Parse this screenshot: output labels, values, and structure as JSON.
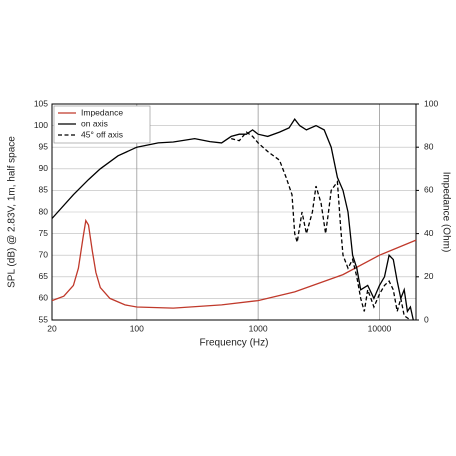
{
  "chart_data": {
    "type": "line",
    "x_label": "Frequency (Hz)",
    "y_label": "SPL (dB) @ 2.83V, 1m, half space",
    "y2_label": "Impedance (Ohm)",
    "xlim": [
      20,
      20000
    ],
    "xticks": [
      20,
      100,
      1000,
      10000
    ],
    "xscale": "log",
    "ylim": [
      55,
      105
    ],
    "yticks": [
      55,
      60,
      65,
      70,
      75,
      80,
      85,
      90,
      95,
      100,
      105
    ],
    "y2lim": [
      0,
      100
    ],
    "y2ticks": [
      0,
      20,
      40,
      60,
      80,
      100
    ],
    "grid": true,
    "legend": "upper left",
    "series": [
      {
        "name": "Impedance",
        "color": "#c0392b",
        "axis": "y2",
        "style": "solid",
        "x": [
          20,
          25,
          30,
          33,
          36,
          38,
          40,
          43,
          46,
          50,
          60,
          80,
          100,
          200,
          500,
          1000,
          2000,
          5000,
          10000,
          20000
        ],
        "values": [
          9,
          11,
          16,
          24,
          38,
          46,
          44,
          32,
          22,
          15,
          10,
          7,
          6,
          5.5,
          7,
          9,
          13,
          21,
          30,
          37
        ]
      },
      {
        "name": "on axis",
        "color": "#000000",
        "axis": "y",
        "style": "solid",
        "x": [
          20,
          30,
          40,
          50,
          70,
          100,
          150,
          200,
          300,
          400,
          500,
          600,
          700,
          800,
          900,
          1000,
          1200,
          1500,
          1800,
          2000,
          2200,
          2500,
          3000,
          3500,
          4000,
          4500,
          5000,
          5500,
          6000,
          6500,
          7000,
          8000,
          9000,
          10000,
          11000,
          12000,
          13000,
          14000,
          15000,
          16000,
          17000,
          18000,
          19000
        ],
        "values": [
          78.5,
          84,
          87.5,
          90,
          93,
          95,
          96,
          96.2,
          97,
          96.3,
          96,
          97.5,
          98,
          98,
          99,
          98,
          97.5,
          98.5,
          99.5,
          101.5,
          100,
          99,
          100,
          99,
          95,
          88,
          85,
          80,
          70,
          67,
          62,
          63,
          60,
          63,
          65,
          70,
          69,
          64,
          60,
          62,
          57,
          58,
          55
        ]
      },
      {
        "name": "45° off axis",
        "color": "#000000",
        "axis": "y",
        "style": "dashed",
        "x": [
          600,
          700,
          800,
          900,
          1000,
          1200,
          1500,
          1700,
          1900,
          2000,
          2100,
          2300,
          2500,
          2800,
          3000,
          3300,
          3600,
          3800,
          4000,
          4500,
          4800,
          5000,
          5500,
          6000,
          6500,
          7000,
          7500,
          8000,
          8500,
          9000,
          10000,
          11000,
          12000,
          13000,
          14000,
          15000,
          16000,
          18000
        ],
        "values": [
          97,
          96.5,
          98.5,
          97.5,
          96,
          94,
          92,
          88,
          84,
          75,
          73,
          80,
          75,
          80,
          86,
          82,
          75,
          80,
          85,
          87,
          76,
          70,
          67,
          69,
          65,
          60,
          57,
          62,
          60,
          58,
          61,
          63,
          64,
          62,
          57,
          60,
          56,
          55
        ]
      }
    ]
  }
}
